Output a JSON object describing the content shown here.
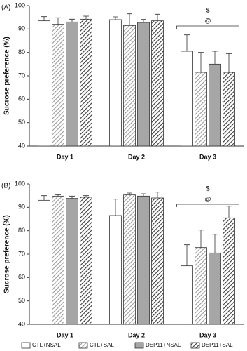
{
  "chart_data": [
    {
      "type": "bar",
      "panel": "(A)",
      "y_label": "Sucrose preference (%)",
      "categories": [
        "Day 1",
        "Day 2",
        "Day 3"
      ],
      "annotations": [
        "$",
        "@"
      ],
      "ylim": [
        40,
        100
      ],
      "yticks": [
        40,
        50,
        60,
        70,
        80,
        90,
        100
      ],
      "series": [
        {
          "name": "CTL+NSAL",
          "color": "#ffffff",
          "hatch": false,
          "values": [
            93.5,
            94,
            80.5
          ],
          "errors": [
            1.8,
            1.2,
            7
          ]
        },
        {
          "name": "CTL+SAL",
          "color": "#9a9a9a",
          "hatch": true,
          "values": [
            92,
            91.5,
            71.5
          ],
          "errors": [
            2.8,
            5,
            8.5
          ]
        },
        {
          "name": "DEP11+NSAL",
          "color": "#a6a6a6",
          "hatch": false,
          "values": [
            93,
            92.8,
            75
          ],
          "errors": [
            1.2,
            1.3,
            5.5
          ]
        },
        {
          "name": "DEP11+SAL",
          "color": "#3a3a3a",
          "hatch": true,
          "values": [
            94.2,
            93.5,
            71.5
          ],
          "errors": [
            1.3,
            2.8,
            8
          ]
        }
      ]
    },
    {
      "type": "bar",
      "panel": "(B)",
      "y_label": "Sucrose preference (%)",
      "categories": [
        "Day 1",
        "Day 2",
        "Day 3"
      ],
      "annotations": [
        "$",
        "@"
      ],
      "ylim": [
        40,
        100
      ],
      "yticks": [
        40,
        50,
        60,
        70,
        80,
        90,
        100
      ],
      "series": [
        {
          "color": "#ffffff",
          "hatch": false,
          "values": [
            93,
            86.5,
            65
          ],
          "errors": [
            2,
            7,
            9
          ]
        },
        {
          "color": "#9a9a9a",
          "hatch": true,
          "values": [
            94.8,
            95.3,
            72.8
          ],
          "errors": [
            0.6,
            0.8,
            7.5
          ]
        },
        {
          "color": "#a6a6a6",
          "hatch": false,
          "values": [
            93.8,
            94.8,
            70.5
          ],
          "errors": [
            1,
            1,
            8
          ]
        },
        {
          "color": "#3a3a3a",
          "hatch": true,
          "values": [
            94.3,
            94,
            85.5
          ],
          "errors": [
            0.7,
            2.5,
            5
          ]
        }
      ]
    }
  ]
}
